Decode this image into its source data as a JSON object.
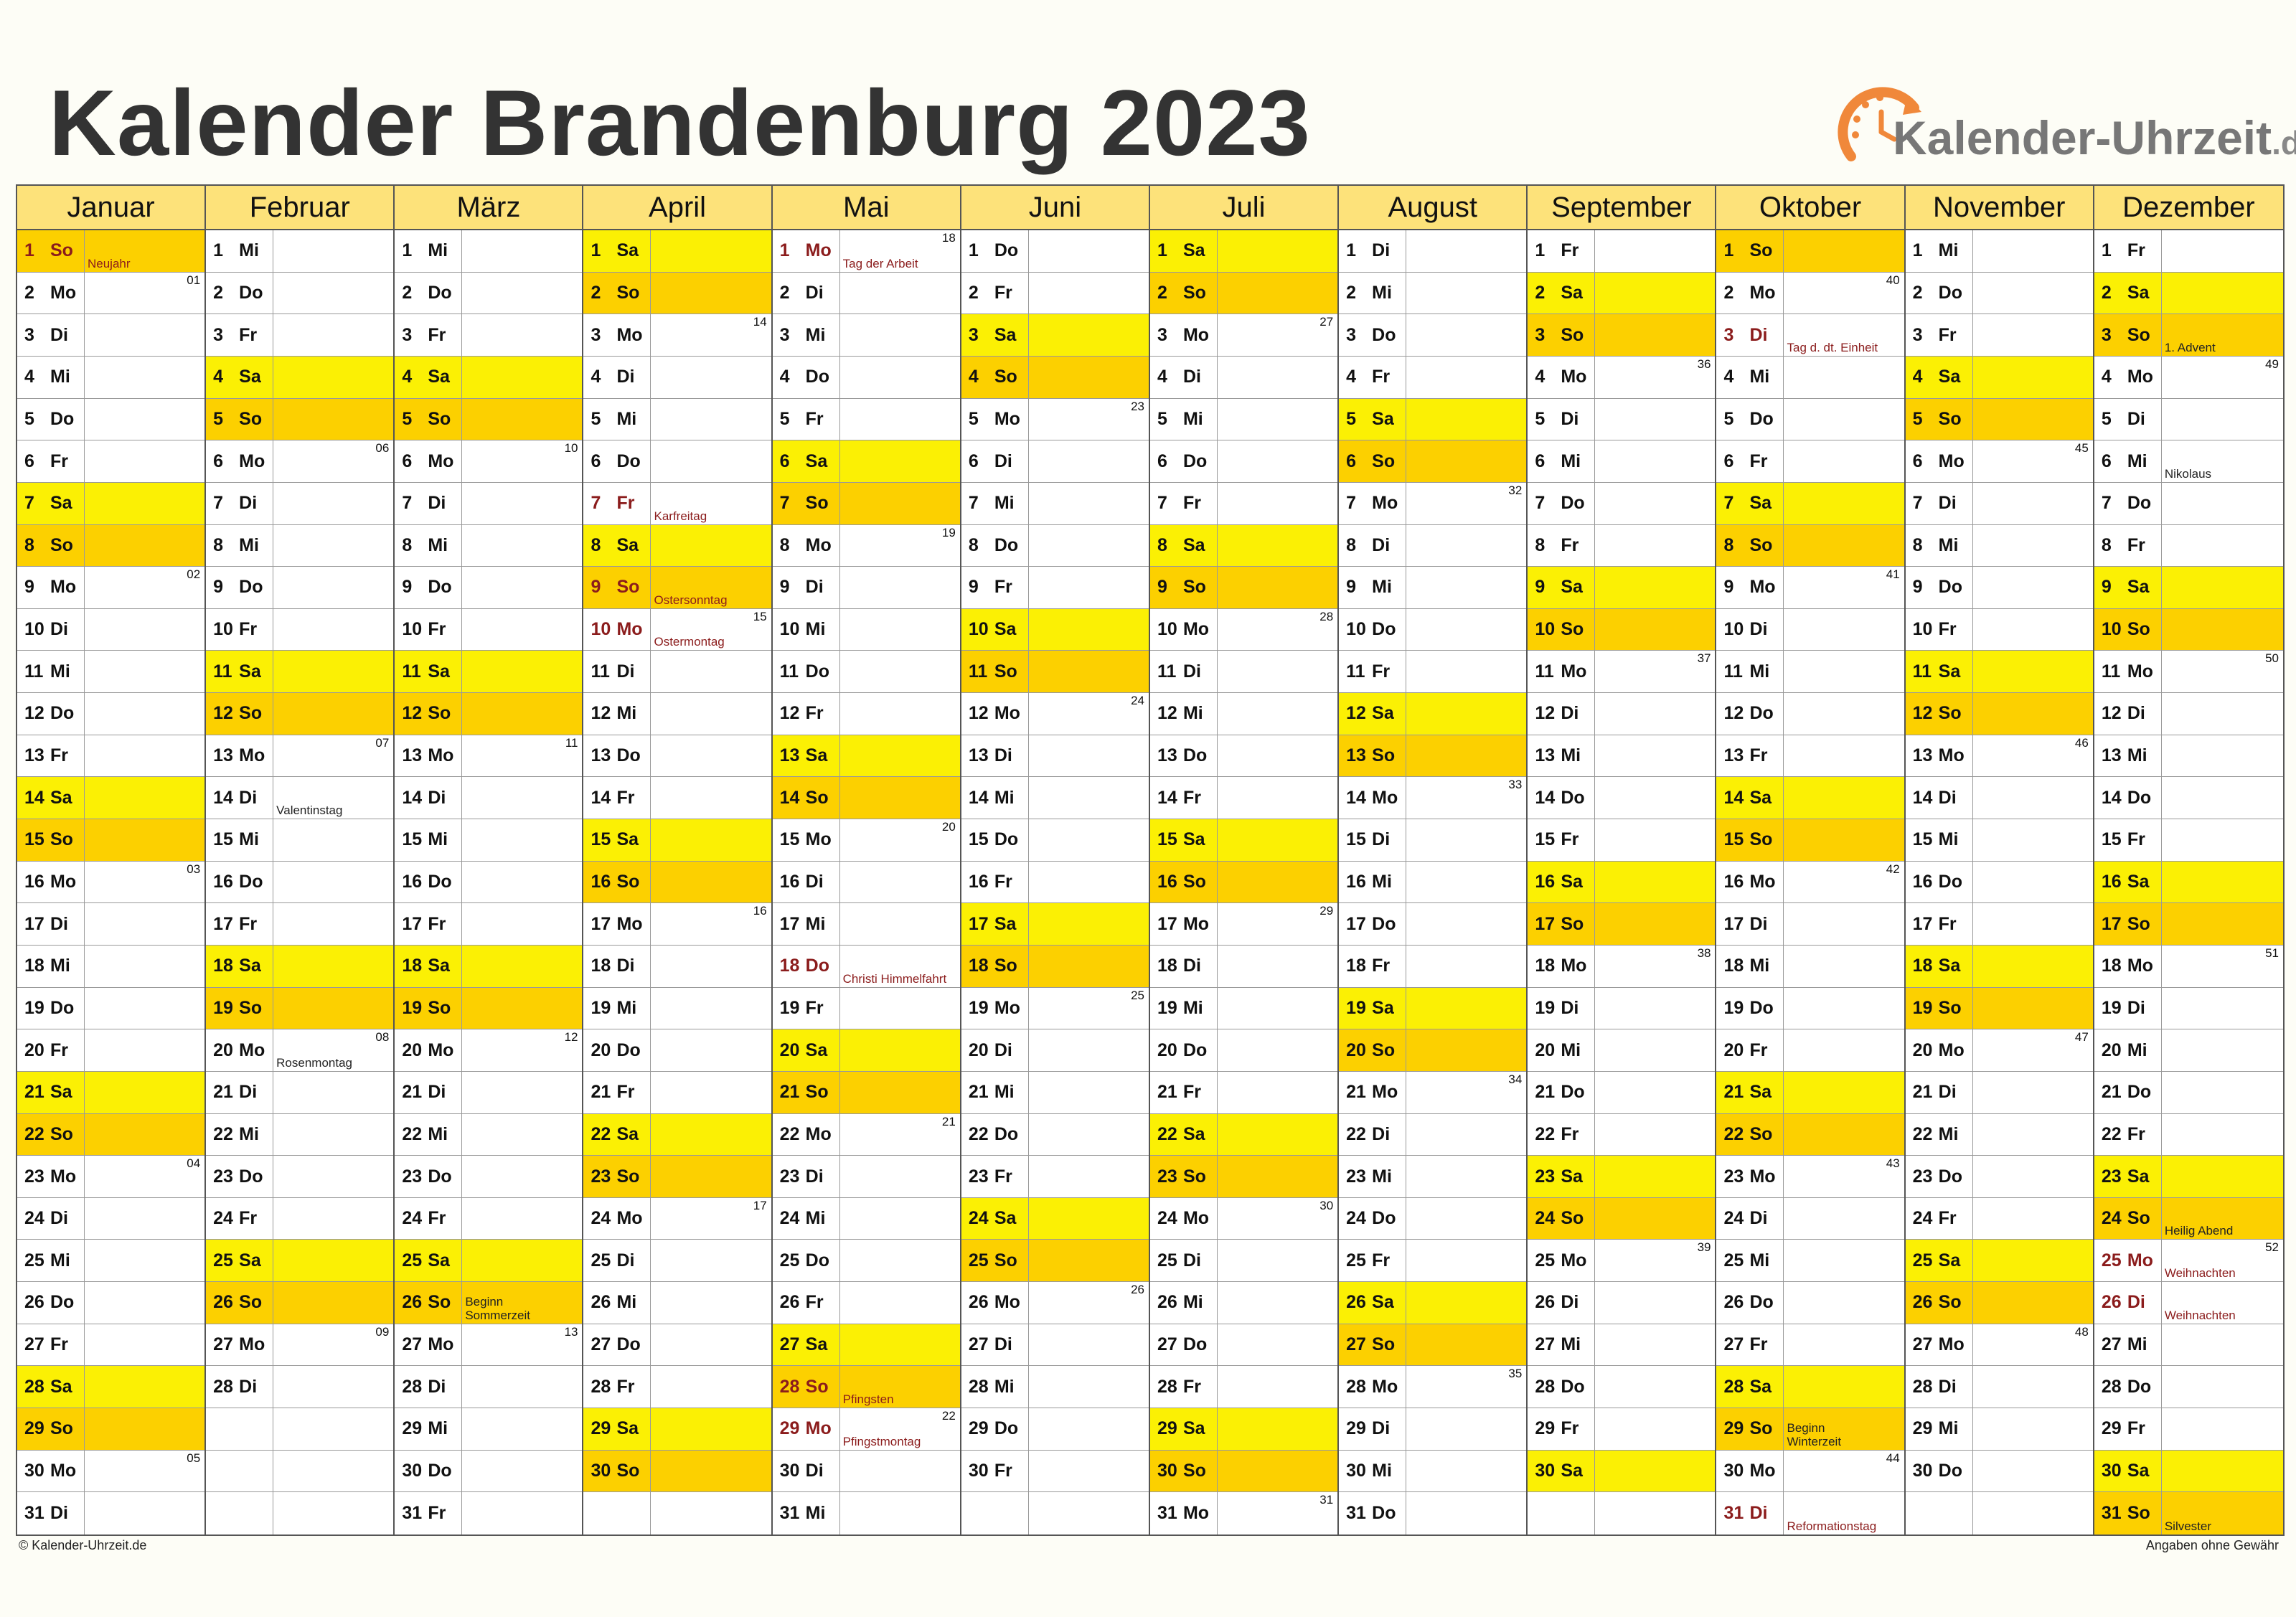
{
  "title": "Kalender Brandenburg 2023",
  "logo": {
    "name": "Kalender-Uhrzeit",
    "tld": ".de",
    "color": "#f0883a"
  },
  "colors": {
    "header": "#fde27a",
    "saturday": "#fbf004",
    "sunday": "#fcd000",
    "holiday_text": "#8b1c1c"
  },
  "year": 2023,
  "weekdays": [
    "So",
    "Mo",
    "Di",
    "Mi",
    "Do",
    "Fr",
    "Sa"
  ],
  "months": [
    "Januar",
    "Februar",
    "März",
    "April",
    "Mai",
    "Juni",
    "Juli",
    "August",
    "September",
    "Oktober",
    "November",
    "Dezember"
  ],
  "notes": {
    "1-1": {
      "text": "Neujahr",
      "holiday": true
    },
    "2-14": {
      "text": "Valentinstag",
      "holiday": false
    },
    "2-20": {
      "text": "Rosenmontag",
      "holiday": false
    },
    "3-26": {
      "text": "Beginn\nSommerzeit",
      "holiday": false
    },
    "4-7": {
      "text": "Karfreitag",
      "holiday": true
    },
    "4-9": {
      "text": "Ostersonntag",
      "holiday": true
    },
    "4-10": {
      "text": "Ostermontag",
      "holiday": true
    },
    "5-1": {
      "text": "Tag der Arbeit",
      "holiday": true
    },
    "5-18": {
      "text": "Christi Himmelfahrt",
      "holiday": true
    },
    "5-28": {
      "text": "Pfingsten",
      "holiday": true
    },
    "5-29": {
      "text": "Pfingstmontag",
      "holiday": true
    },
    "10-3": {
      "text": "Tag d. dt. Einheit",
      "holiday": true
    },
    "10-29": {
      "text": "Beginn\nWinterzeit",
      "holiday": false
    },
    "10-31": {
      "text": "Reformationstag",
      "holiday": true
    },
    "12-3": {
      "text": "1. Advent",
      "holiday": false
    },
    "12-6": {
      "text": "Nikolaus",
      "holiday": false
    },
    "12-24": {
      "text": "Heilig Abend",
      "holiday": false
    },
    "12-25": {
      "text": "Weihnachten",
      "holiday": true
    },
    "12-26": {
      "text": "Weihnachten",
      "holiday": true
    },
    "12-31": {
      "text": "Silvester",
      "holiday": false
    }
  },
  "footer": {
    "left": "© Kalender-Uhrzeit.de",
    "right": "Angaben ohne Gewähr"
  }
}
